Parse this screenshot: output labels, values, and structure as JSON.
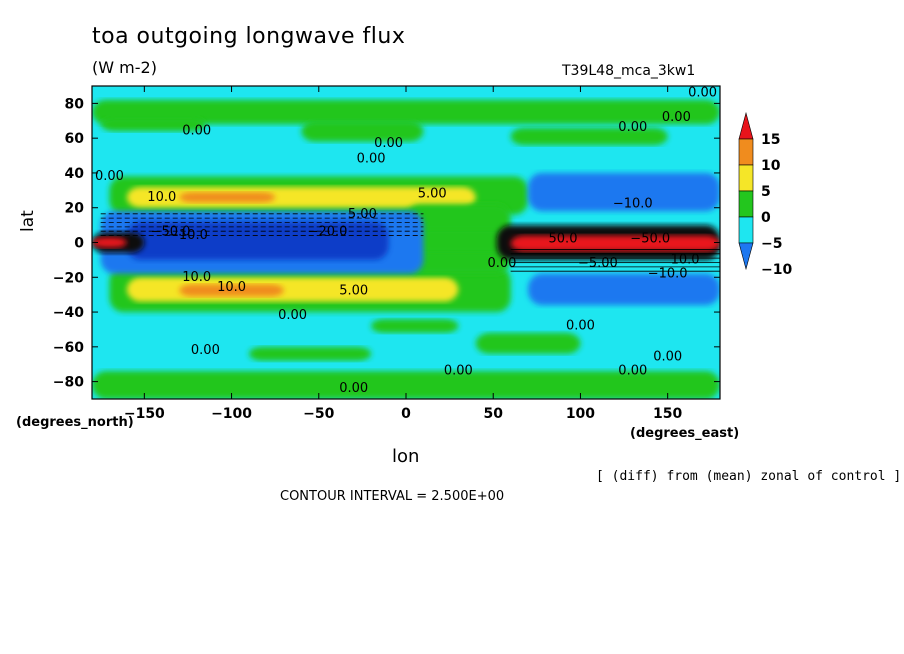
{
  "chart_data": {
    "type": "contour",
    "title": "toa outgoing longwave flux",
    "units": "(W m-2)",
    "run_label": "T39L48_mca_3kw1",
    "xlabel": "lon",
    "ylabel": "lat",
    "x_unit_label": "(degrees_east)",
    "y_unit_label": "(degrees_north)",
    "xlim": [
      -180,
      180
    ],
    "ylim": [
      -90,
      90
    ],
    "x_ticks": [
      -150,
      -100,
      -50,
      0,
      50,
      100,
      150
    ],
    "x_tick_labels": [
      "−150",
      "−100",
      "−50",
      "0",
      "50",
      "100",
      "150"
    ],
    "y_ticks": [
      80,
      60,
      40,
      20,
      0,
      -20,
      -40,
      -60,
      -80
    ],
    "y_tick_labels": [
      "80",
      "60",
      "40",
      "20",
      "0",
      "−20",
      "−40",
      "−60",
      "−80"
    ],
    "colorbar": {
      "levels": [
        "15",
        "10",
        "5",
        "0",
        "−5",
        "−10"
      ],
      "colors": [
        "#e8141b",
        "#f08c1e",
        "#f5e628",
        "#23c61e",
        "#1ee6f0",
        "#1e78f0"
      ],
      "extend": "both"
    },
    "contour_labels": [
      "0.00",
      "−50.0",
      "−10.0",
      "−20.0",
      "10.0",
      "5.00",
      "50.0",
      "−5.00"
    ],
    "field_note": "[ (diff) from (mean) zonal of control ]",
    "contour_interval": "CONTOUR INTERVAL = 2.500E+00"
  }
}
